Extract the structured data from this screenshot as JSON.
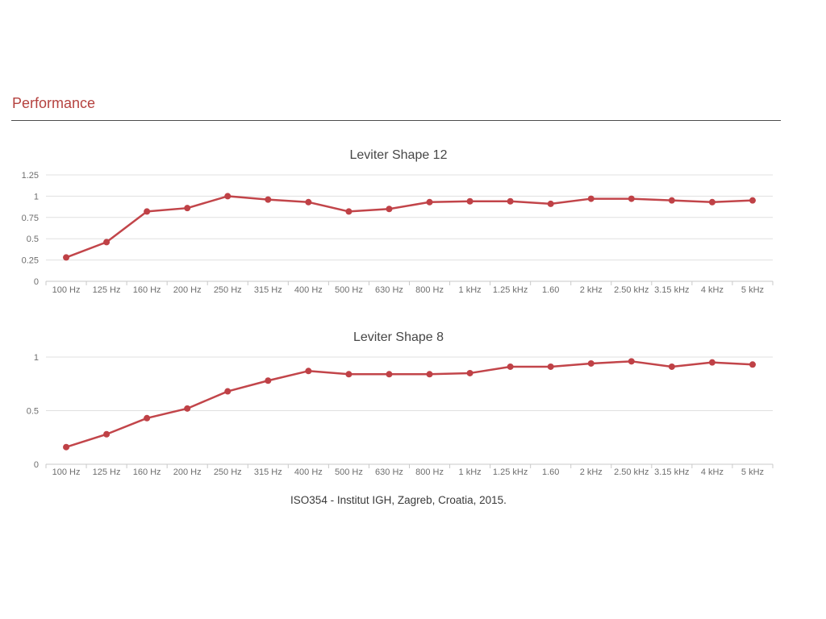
{
  "page": {
    "heading": "Performance",
    "caption": "ISO354 - Institut IGH, Zagreb, Croatia, 2015.",
    "accent_color": "#b5423f",
    "line_color": "#c2454a",
    "marker_color": "#bf4146",
    "gridline_color": "#e0e0e0",
    "axis_color": "#c9c9c9"
  },
  "chart_data": [
    {
      "type": "line",
      "title": "Leviter Shape 12",
      "categories": [
        "100 Hz",
        "125 Hz",
        "160 Hz",
        "200 Hz",
        "250 Hz",
        "315 Hz",
        "400 Hz",
        "500 Hz",
        "630 Hz",
        "800 Hz",
        "1 kHz",
        "1.25 kHz",
        "1.60",
        "2 kHz",
        "2.50 kHz",
        "3.15 kHz",
        "4 kHz",
        "5 kHz"
      ],
      "values": [
        0.28,
        0.46,
        0.82,
        0.86,
        1.0,
        0.96,
        0.93,
        0.82,
        0.85,
        0.93,
        0.94,
        0.94,
        0.91,
        0.97,
        0.97,
        0.95,
        0.93,
        0.95
      ],
      "yticks": [
        0,
        0.25,
        0.5,
        0.75,
        1,
        1.25
      ],
      "ylim": [
        0,
        1.25
      ],
      "xlabel": "",
      "ylabel": "",
      "grid": true,
      "legend": "none"
    },
    {
      "type": "line",
      "title": "Leviter Shape 8",
      "categories": [
        "100 Hz",
        "125 Hz",
        "160 Hz",
        "200 Hz",
        "250 Hz",
        "315 Hz",
        "400 Hz",
        "500 Hz",
        "630 Hz",
        "800 Hz",
        "1 kHz",
        "1.25 kHz",
        "1.60",
        "2 kHz",
        "2.50 kHz",
        "3.15 kHz",
        "4 kHz",
        "5 kHz"
      ],
      "values": [
        0.16,
        0.28,
        0.43,
        0.52,
        0.68,
        0.78,
        0.87,
        0.84,
        0.84,
        0.84,
        0.85,
        0.91,
        0.91,
        0.94,
        0.96,
        0.91,
        0.95,
        0.93
      ],
      "yticks": [
        0,
        0.5,
        1
      ],
      "ylim": [
        0,
        1.05
      ],
      "xlabel": "",
      "ylabel": "",
      "grid": true,
      "legend": "none"
    }
  ]
}
